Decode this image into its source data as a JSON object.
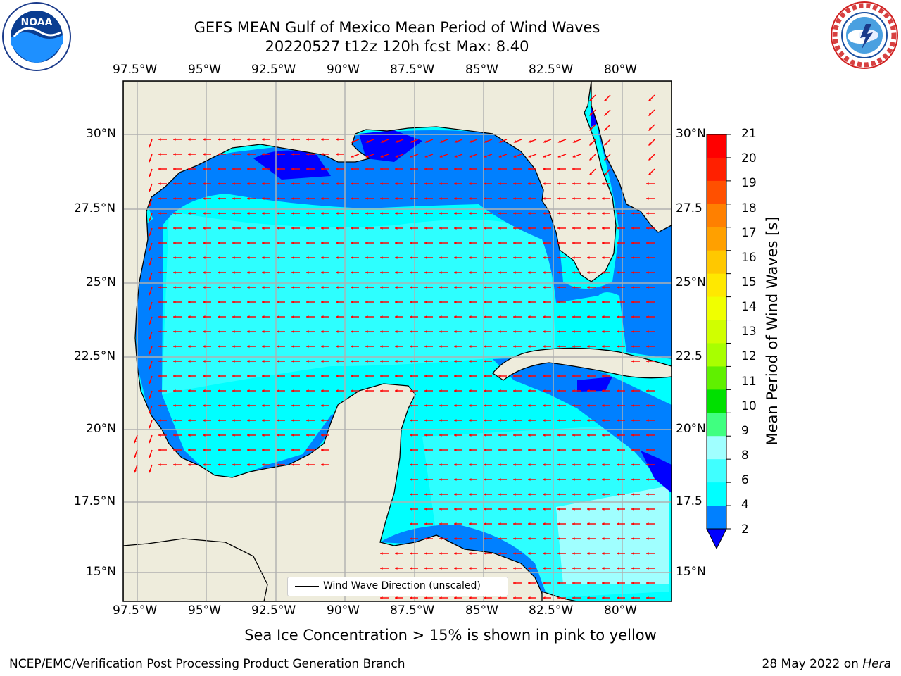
{
  "header": {
    "title_line1": "GEFS MEAN Gulf of Mexico Mean Period of Wind Waves",
    "title_line2": "20220527 t12z 120h fcst   Max: 8.40"
  },
  "logos": {
    "left": {
      "icon": "noaa-logo-icon",
      "text": "NOAA",
      "ring_text": "NATIONAL OCEANIC AND ATMOSPHERIC ADMINISTRATION"
    },
    "right": {
      "icon": "nws-logo-icon",
      "ring_text": "NATIONAL WEATHER SERVICE"
    }
  },
  "map": {
    "lon_labels": [
      "97.5°W",
      "95°W",
      "92.5°W",
      "90°W",
      "87.5°W",
      "85°W",
      "82.5°W",
      "80°W"
    ],
    "lat_labels_left": [
      "30°N",
      "27.5°N",
      "25°N",
      "22.5°N",
      "20°N",
      "17.5°N",
      "15°N"
    ],
    "lat_labels_right": [
      "30°N",
      "27.5",
      "25°N",
      "22.5",
      "20°N",
      "17.5",
      "15°N"
    ],
    "legend_label": "Wind Wave Direction (unscaled)",
    "colors": {
      "land": "#eeecdc",
      "ocean_2_4": "#0080ff",
      "ocean_4_6": "#00ffff",
      "ocean_6_8": "#40ffff",
      "ocean_8_9": "#a0ffff",
      "under_2": "#0000ff",
      "arrows": "#ff0000",
      "grid": "#b0b0b0"
    }
  },
  "colorbar": {
    "title": "Mean Period of Wind Waves [s]",
    "tick_labels": [
      "21",
      "20",
      "19",
      "18",
      "17",
      "16",
      "15",
      "14",
      "13",
      "12",
      "11",
      "10",
      "9",
      "8",
      "6",
      "4",
      "2"
    ],
    "colors": [
      "#ff0000",
      "#ff2000",
      "#ff5000",
      "#ff8000",
      "#ffa000",
      "#ffc800",
      "#ffe800",
      "#f0ff00",
      "#d0ff00",
      "#a8ff00",
      "#60f000",
      "#00e000",
      "#40ff80",
      "#a0ffff",
      "#40ffff",
      "#00ffff",
      "#0080ff"
    ],
    "extend_color": "#0000ff"
  },
  "caption": "Sea Ice Concentration > 15% is shown in pink to yellow",
  "footer": {
    "left": "NCEP/EMC/Verification Post Processing Product Generation Branch",
    "right_date": "28 May 2022 on",
    "right_host": "Hera"
  }
}
